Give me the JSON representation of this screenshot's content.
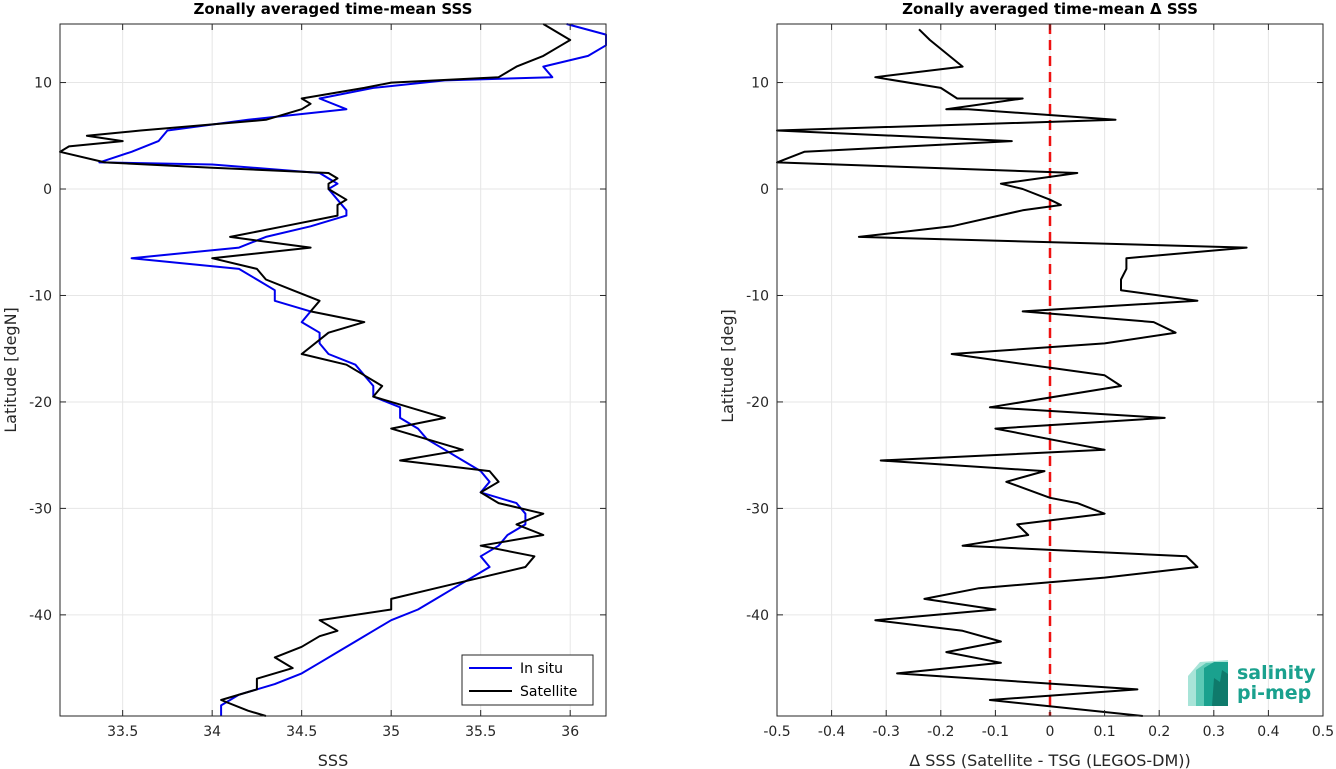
{
  "chart_data": [
    {
      "type": "line",
      "title": "Zonally averaged time-mean SSS",
      "xlabel": "SSS",
      "ylabel": "Latitude [degN]",
      "xlim": [
        33.15,
        36.2
      ],
      "ylim": [
        -49.5,
        15.5
      ],
      "xticks": [
        33.5,
        34,
        34.5,
        35,
        35.5,
        36
      ],
      "xticklabels": [
        "33.5",
        "34",
        "34.5",
        "35",
        "35.5",
        "36"
      ],
      "yticks": [
        10,
        0,
        -10,
        -20,
        -30,
        -40
      ],
      "yticklabels": [
        "10",
        "0",
        "-10",
        "-20",
        "-30",
        "-40"
      ],
      "grid": true,
      "legend": {
        "placement": "bottom-right"
      },
      "series": [
        {
          "name": "In situ",
          "color": "#0000ee",
          "points": [
            [
              35.98,
              15.5
            ],
            [
              36.2,
              14.5
            ],
            [
              36.2,
              13.5
            ],
            [
              36.1,
              12.5
            ],
            [
              35.85,
              11.5
            ],
            [
              35.9,
              10.5
            ],
            [
              35.3,
              10.2
            ],
            [
              34.9,
              9.5
            ],
            [
              34.6,
              8.5
            ],
            [
              34.75,
              7.5
            ],
            [
              34.2,
              6.5
            ],
            [
              33.75,
              5.5
            ],
            [
              33.7,
              4.5
            ],
            [
              33.55,
              3.5
            ],
            [
              33.37,
              2.5
            ],
            [
              34.0,
              2.3
            ],
            [
              34.6,
              1.5
            ],
            [
              34.65,
              1.0
            ],
            [
              34.7,
              0.5
            ],
            [
              34.65,
              0
            ],
            [
              34.7,
              -1.0
            ],
            [
              34.75,
              -2.0
            ],
            [
              34.75,
              -2.5
            ],
            [
              34.55,
              -3.5
            ],
            [
              34.3,
              -4.5
            ],
            [
              34.15,
              -5.5
            ],
            [
              33.55,
              -6.5
            ],
            [
              34.15,
              -7.5
            ],
            [
              34.25,
              -8.5
            ],
            [
              34.35,
              -9.5
            ],
            [
              34.35,
              -10.5
            ],
            [
              34.55,
              -11.5
            ],
            [
              34.5,
              -12.5
            ],
            [
              34.6,
              -13.5
            ],
            [
              34.6,
              -14.5
            ],
            [
              34.65,
              -15.5
            ],
            [
              34.8,
              -16.5
            ],
            [
              34.85,
              -17.5
            ],
            [
              34.9,
              -18.5
            ],
            [
              34.9,
              -19.5
            ],
            [
              35.05,
              -20.5
            ],
            [
              35.05,
              -21.5
            ],
            [
              35.15,
              -22.5
            ],
            [
              35.2,
              -23.5
            ],
            [
              35.3,
              -24.5
            ],
            [
              35.4,
              -25.5
            ],
            [
              35.5,
              -26.5
            ],
            [
              35.55,
              -27.5
            ],
            [
              35.5,
              -28.5
            ],
            [
              35.7,
              -29.5
            ],
            [
              35.75,
              -30.5
            ],
            [
              35.75,
              -31.5
            ],
            [
              35.65,
              -32.5
            ],
            [
              35.6,
              -33.5
            ],
            [
              35.5,
              -34.5
            ],
            [
              35.55,
              -35.5
            ],
            [
              35.45,
              -36.5
            ],
            [
              35.35,
              -37.5
            ],
            [
              35.25,
              -38.5
            ],
            [
              35.15,
              -39.5
            ],
            [
              35.0,
              -40.5
            ],
            [
              34.9,
              -41.5
            ],
            [
              34.8,
              -42.5
            ],
            [
              34.7,
              -43.5
            ],
            [
              34.6,
              -44.5
            ],
            [
              34.5,
              -45.5
            ],
            [
              34.35,
              -46.5
            ],
            [
              34.15,
              -47.5
            ],
            [
              34.05,
              -48.5
            ],
            [
              34.05,
              -49.5
            ]
          ]
        },
        {
          "name": "Satellite",
          "color": "#000000",
          "points": [
            [
              35.85,
              15.5
            ],
            [
              36.0,
              14.0
            ],
            [
              35.95,
              13.5
            ],
            [
              35.85,
              12.5
            ],
            [
              35.7,
              11.5
            ],
            [
              35.6,
              10.5
            ],
            [
              35.0,
              10.0
            ],
            [
              34.85,
              9.5
            ],
            [
              34.5,
              8.5
            ],
            [
              34.55,
              8.0
            ],
            [
              34.5,
              7.5
            ],
            [
              34.3,
              6.5
            ],
            [
              33.6,
              5.5
            ],
            [
              33.3,
              5.0
            ],
            [
              33.5,
              4.5
            ],
            [
              33.2,
              4.0
            ],
            [
              33.15,
              3.5
            ],
            [
              33.4,
              2.5
            ],
            [
              34.0,
              2.0
            ],
            [
              34.65,
              1.5
            ],
            [
              34.7,
              1.0
            ],
            [
              34.65,
              0.5
            ],
            [
              34.65,
              0
            ],
            [
              34.75,
              -1.0
            ],
            [
              34.7,
              -1.5
            ],
            [
              34.7,
              -2.5
            ],
            [
              34.4,
              -3.5
            ],
            [
              34.1,
              -4.5
            ],
            [
              34.55,
              -5.5
            ],
            [
              34.0,
              -6.5
            ],
            [
              34.25,
              -7.5
            ],
            [
              34.3,
              -8.5
            ],
            [
              34.45,
              -9.5
            ],
            [
              34.6,
              -10.5
            ],
            [
              34.55,
              -11.5
            ],
            [
              34.85,
              -12.5
            ],
            [
              34.65,
              -13.5
            ],
            [
              34.5,
              -15.5
            ],
            [
              34.75,
              -16.5
            ],
            [
              34.85,
              -17.5
            ],
            [
              34.95,
              -18.5
            ],
            [
              34.9,
              -19.5
            ],
            [
              35.3,
              -21.5
            ],
            [
              35.0,
              -22.5
            ],
            [
              35.4,
              -24.5
            ],
            [
              35.05,
              -25.5
            ],
            [
              35.55,
              -26.5
            ],
            [
              35.6,
              -27.5
            ],
            [
              35.5,
              -28.5
            ],
            [
              35.6,
              -29.5
            ],
            [
              35.85,
              -30.5
            ],
            [
              35.7,
              -31.5
            ],
            [
              35.85,
              -32.5
            ],
            [
              35.5,
              -33.5
            ],
            [
              35.8,
              -34.5
            ],
            [
              35.75,
              -35.5
            ],
            [
              35.25,
              -37.5
            ],
            [
              35.0,
              -38.5
            ],
            [
              35.0,
              -39.5
            ],
            [
              34.6,
              -40.5
            ],
            [
              34.7,
              -41.5
            ],
            [
              34.6,
              -42.0
            ],
            [
              34.5,
              -43.0
            ],
            [
              34.35,
              -44.0
            ],
            [
              34.45,
              -45.0
            ],
            [
              34.25,
              -46.0
            ],
            [
              34.25,
              -47.0
            ],
            [
              34.05,
              -48.0
            ],
            [
              34.2,
              -49.0
            ],
            [
              34.3,
              -49.5
            ]
          ]
        }
      ]
    },
    {
      "type": "line",
      "title": "Zonally averaged time-mean Δ SSS",
      "xlabel": "Δ SSS (Satellite - TSG (LEGOS-DM))",
      "ylabel": "Latitude [deg]",
      "xlim": [
        -0.5,
        0.5
      ],
      "ylim": [
        -49.5,
        15.5
      ],
      "xticks": [
        -0.5,
        -0.4,
        -0.3,
        -0.2,
        -0.1,
        0,
        0.1,
        0.2,
        0.3,
        0.4,
        0.5
      ],
      "xticklabels": [
        "-0.5",
        "-0.4",
        "-0.3",
        "-0.2",
        "-0.1",
        "0",
        "0.1",
        "0.2",
        "0.3",
        "0.4",
        "0.5"
      ],
      "yticks": [
        10,
        0,
        -10,
        -20,
        -30,
        -40
      ],
      "yticklabels": [
        "10",
        "0",
        "-10",
        "-20",
        "-30",
        "-40"
      ],
      "grid": true,
      "reference_line": {
        "x": 0,
        "color": "#ee1111",
        "style": "dashed"
      },
      "series": [
        {
          "color": "#000000",
          "points": [
            [
              -0.24,
              15.0
            ],
            [
              -0.22,
              14.0
            ],
            [
              -0.16,
              11.5
            ],
            [
              -0.32,
              10.5
            ],
            [
              -0.2,
              9.5
            ],
            [
              -0.17,
              8.5
            ],
            [
              -0.05,
              8.5
            ],
            [
              -0.19,
              7.5
            ],
            [
              -0.15,
              7.5
            ],
            [
              0.12,
              6.5
            ],
            [
              -0.5,
              5.5
            ],
            [
              -0.07,
              4.5
            ],
            [
              -0.45,
              3.5
            ],
            [
              -0.5,
              2.5
            ],
            [
              0.05,
              1.5
            ],
            [
              -0.09,
              0.5
            ],
            [
              -0.05,
              0
            ],
            [
              0.0,
              -1.0
            ],
            [
              0.02,
              -1.5
            ],
            [
              -0.05,
              -2.0
            ],
            [
              -0.18,
              -3.5
            ],
            [
              -0.35,
              -4.5
            ],
            [
              0.36,
              -5.5
            ],
            [
              0.14,
              -6.5
            ],
            [
              0.14,
              -7.5
            ],
            [
              0.13,
              -8.5
            ],
            [
              0.13,
              -9.5
            ],
            [
              0.27,
              -10.5
            ],
            [
              -0.05,
              -11.5
            ],
            [
              0.19,
              -12.5
            ],
            [
              0.23,
              -13.5
            ],
            [
              0.1,
              -14.5
            ],
            [
              -0.18,
              -15.5
            ],
            [
              0.1,
              -17.5
            ],
            [
              0.13,
              -18.5
            ],
            [
              -0.11,
              -20.5
            ],
            [
              0.21,
              -21.5
            ],
            [
              -0.1,
              -22.5
            ],
            [
              0.1,
              -24.5
            ],
            [
              -0.31,
              -25.5
            ],
            [
              -0.01,
              -26.5
            ],
            [
              -0.08,
              -27.5
            ],
            [
              0.0,
              -29.0
            ],
            [
              0.05,
              -29.5
            ],
            [
              0.1,
              -30.5
            ],
            [
              -0.06,
              -31.5
            ],
            [
              -0.04,
              -32.5
            ],
            [
              -0.16,
              -33.5
            ],
            [
              0.25,
              -34.5
            ],
            [
              0.27,
              -35.5
            ],
            [
              0.1,
              -36.5
            ],
            [
              -0.13,
              -37.5
            ],
            [
              -0.23,
              -38.5
            ],
            [
              -0.1,
              -39.5
            ],
            [
              -0.32,
              -40.5
            ],
            [
              -0.16,
              -41.5
            ],
            [
              -0.09,
              -42.5
            ],
            [
              -0.19,
              -43.5
            ],
            [
              -0.09,
              -44.5
            ],
            [
              -0.28,
              -45.5
            ],
            [
              0.16,
              -47.0
            ],
            [
              -0.11,
              -48.0
            ],
            [
              0.17,
              -49.5
            ]
          ]
        }
      ]
    }
  ],
  "logo": {
    "line1": "salinity",
    "line2": "pi-mep",
    "color": "#1aa18e"
  }
}
